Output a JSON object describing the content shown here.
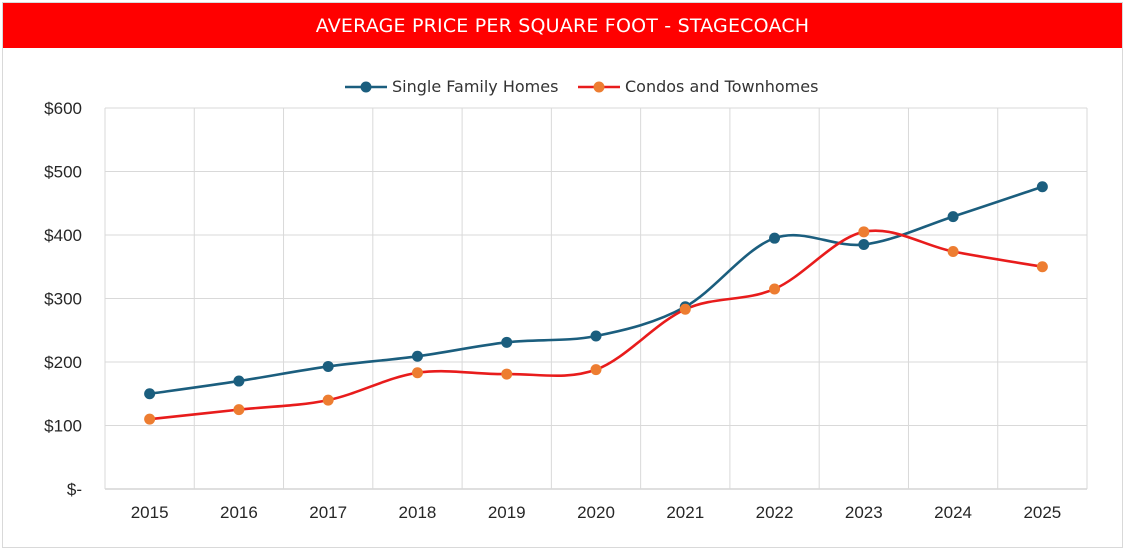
{
  "chart_data": {
    "type": "line",
    "title": "AVERAGE PRICE PER SQUARE FOOT - STAGECOACH",
    "categories": [
      "2015",
      "2016",
      "2017",
      "2018",
      "2019",
      "2020",
      "2021",
      "2022",
      "2023",
      "2024",
      "2025"
    ],
    "series": [
      {
        "name": "Single Family Homes",
        "color": "#1b5e7e",
        "values": [
          150,
          170,
          193,
          209,
          231,
          241,
          287,
          395,
          385,
          429,
          476
        ]
      },
      {
        "name": "Condos and Townhomes",
        "color": "#e81c1c",
        "marker_color": "#ed7d31",
        "values": [
          110,
          125,
          140,
          183,
          181,
          188,
          283,
          315,
          405,
          374,
          350
        ]
      }
    ],
    "yticks": [
      0,
      100,
      200,
      300,
      400,
      500,
      600
    ],
    "ytick_labels": [
      "$-",
      "$100",
      "$200",
      "$300",
      "$400",
      "$500",
      "$600"
    ],
    "ylim": [
      0,
      600
    ],
    "grid": true,
    "legend_position": "top-center",
    "xlabel": "",
    "ylabel": ""
  }
}
